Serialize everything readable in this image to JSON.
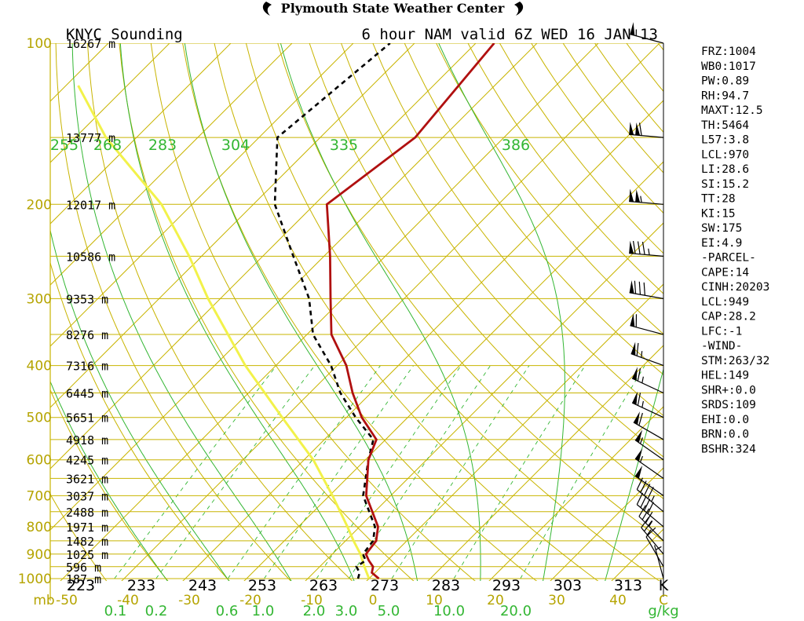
{
  "header": {
    "center_title": "Plymouth State Weather Center",
    "left": "KNYC Sounding",
    "right": "6 hour NAM valid 6Z WED 16 JAN 13"
  },
  "colors": {
    "temperature": "#b01010",
    "dewpoint": "#000000",
    "parcel": "#f2f24a",
    "isobars_isotherms": "#c8b400",
    "adiabats_mixing": "#33b633"
  },
  "icons": {
    "logo_left": "hurricane-symbol-icon",
    "logo_right": "hurricane-symbol-icon"
  },
  "chart_data": {
    "type": "skew-t log-p",
    "pressure_axis_unit": "mb",
    "pressure_ticks": [
      "100",
      "200",
      "300",
      "400",
      "500",
      "600",
      "700",
      "800",
      "900",
      "1000"
    ],
    "temperature_axis_unit": "C",
    "temperature_ticks": [
      "-50",
      "-40",
      "-30",
      "-20",
      "-10",
      "0",
      "10",
      "20",
      "30",
      "40"
    ],
    "kelvin_ticks": [
      "223",
      "233",
      "243",
      "253",
      "263",
      "273",
      "283",
      "293",
      "303",
      "313"
    ],
    "kelvin_unit": "K",
    "theta_labels": [
      "255",
      "268",
      "283",
      "304",
      "335",
      "386"
    ],
    "mixing_ratio_unit": "g/kg",
    "mixing_ratio_ticks": [
      "0.1",
      "0.2",
      "0.6",
      "1.0",
      "2.0",
      "3.0",
      "5.0",
      "10.0",
      "20.0"
    ],
    "heights": [
      {
        "p": 100,
        "label": "16267 m"
      },
      {
        "p": 150,
        "label": "13777 m"
      },
      {
        "p": 200,
        "label": "12017 m"
      },
      {
        "p": 250,
        "label": "10586 m"
      },
      {
        "p": 300,
        "label": "9353 m"
      },
      {
        "p": 350,
        "label": "8276 m"
      },
      {
        "p": 400,
        "label": "7316 m"
      },
      {
        "p": 450,
        "label": "6445 m"
      },
      {
        "p": 500,
        "label": "5651 m"
      },
      {
        "p": 550,
        "label": "4918 m"
      },
      {
        "p": 600,
        "label": "4245 m"
      },
      {
        "p": 650,
        "label": "3621 m"
      },
      {
        "p": 700,
        "label": "3037 m"
      },
      {
        "p": 750,
        "label": "2488 m"
      },
      {
        "p": 800,
        "label": "1971 m"
      },
      {
        "p": 850,
        "label": "1482 m"
      },
      {
        "p": 900,
        "label": "1025 m"
      },
      {
        "p": 950,
        "label": "596 m"
      },
      {
        "p": 1000,
        "label": "187 m"
      }
    ],
    "temperature_profile": [
      {
        "p": 1000,
        "t": 1.6
      },
      {
        "p": 975,
        "t": -0.5
      },
      {
        "p": 950,
        "t": -1.3
      },
      {
        "p": 925,
        "t": -3.0
      },
      {
        "p": 900,
        "t": -4.5
      },
      {
        "p": 850,
        "t": -5.0
      },
      {
        "p": 800,
        "t": -7.0
      },
      {
        "p": 700,
        "t": -14.0
      },
      {
        "p": 600,
        "t": -19.5
      },
      {
        "p": 550,
        "t": -21.5
      },
      {
        "p": 500,
        "t": -27.5
      },
      {
        "p": 450,
        "t": -33.0
      },
      {
        "p": 400,
        "t": -38.5
      },
      {
        "p": 350,
        "t": -46.0
      },
      {
        "p": 300,
        "t": -52.0
      },
      {
        "p": 250,
        "t": -59.0
      },
      {
        "p": 200,
        "t": -68.0
      },
      {
        "p": 150,
        "t": -64.5
      },
      {
        "p": 100,
        "t": -67.0
      }
    ],
    "dewpoint_profile": [
      {
        "p": 1000,
        "t": -1.8
      },
      {
        "p": 975,
        "t": -2.5
      },
      {
        "p": 950,
        "t": -4.0
      },
      {
        "p": 925,
        "t": -3.5
      },
      {
        "p": 900,
        "t": -5.0
      },
      {
        "p": 850,
        "t": -5.5
      },
      {
        "p": 800,
        "t": -7.5
      },
      {
        "p": 700,
        "t": -14.5
      },
      {
        "p": 600,
        "t": -19.5
      },
      {
        "p": 550,
        "t": -22.0
      },
      {
        "p": 500,
        "t": -28.5
      },
      {
        "p": 450,
        "t": -35.0
      },
      {
        "p": 400,
        "t": -41.0
      },
      {
        "p": 350,
        "t": -49.0
      },
      {
        "p": 300,
        "t": -55.5
      },
      {
        "p": 250,
        "t": -65.0
      },
      {
        "p": 200,
        "t": -76.5
      },
      {
        "p": 150,
        "t": -87.0
      },
      {
        "p": 100,
        "t": -84.0
      }
    ],
    "parcel_profile": [
      {
        "p": 1000,
        "t": 0.0
      },
      {
        "p": 950,
        "t": -2.7
      },
      {
        "p": 900,
        "t": -5.4
      },
      {
        "p": 850,
        "t": -8.7
      },
      {
        "p": 800,
        "t": -12.0
      },
      {
        "p": 700,
        "t": -19.5
      },
      {
        "p": 600,
        "t": -28.5
      },
      {
        "p": 500,
        "t": -40.5
      },
      {
        "p": 400,
        "t": -55.0
      },
      {
        "p": 300,
        "t": -72.0
      },
      {
        "p": 250,
        "t": -82.0
      },
      {
        "p": 200,
        "t": -95.0
      },
      {
        "p": 150,
        "t": -115.0
      },
      {
        "p": 120,
        "t": -128.0
      }
    ],
    "wind_barbs": [
      {
        "p": 100,
        "dir": 285,
        "spd": 55
      },
      {
        "p": 150,
        "dir": 275,
        "spd": 110
      },
      {
        "p": 200,
        "dir": 275,
        "spd": 105
      },
      {
        "p": 250,
        "dir": 275,
        "spd": 85
      },
      {
        "p": 300,
        "dir": 280,
        "spd": 80
      },
      {
        "p": 350,
        "dir": 285,
        "spd": 60
      },
      {
        "p": 400,
        "dir": 290,
        "spd": 65
      },
      {
        "p": 450,
        "dir": 295,
        "spd": 65
      },
      {
        "p": 500,
        "dir": 295,
        "spd": 65
      },
      {
        "p": 550,
        "dir": 300,
        "spd": 60
      },
      {
        "p": 600,
        "dir": 305,
        "spd": 55
      },
      {
        "p": 650,
        "dir": 305,
        "spd": 55
      },
      {
        "p": 700,
        "dir": 305,
        "spd": 50
      },
      {
        "p": 750,
        "dir": 310,
        "spd": 45
      },
      {
        "p": 800,
        "dir": 310,
        "spd": 40
      },
      {
        "p": 850,
        "dir": 315,
        "spd": 35
      },
      {
        "p": 900,
        "dir": 320,
        "spd": 25
      },
      {
        "p": 950,
        "dir": 330,
        "spd": 10
      },
      {
        "p": 1000,
        "dir": 345,
        "spd": 5
      }
    ],
    "indices": [
      "FRZ:1004",
      "WB0:1017",
      "PW:0.89",
      "RH:94.7",
      "MAXT:12.5",
      "TH:5464",
      "L57:3.8",
      "LCL:970",
      "LI:28.6",
      "SI:15.2",
      "TT:28",
      "KI:15",
      "SW:175",
      "EI:4.9",
      "-PARCEL-",
      "CAPE:14",
      "CINH:20203",
      "LCL:949",
      "CAP:28.2",
      "LFC:-1",
      "-WIND-",
      "STM:263/32",
      "HEL:149",
      "SHR+:0.0",
      "SRDS:109",
      "EHI:0.0",
      "BRN:0.0",
      "BSHR:324"
    ]
  }
}
